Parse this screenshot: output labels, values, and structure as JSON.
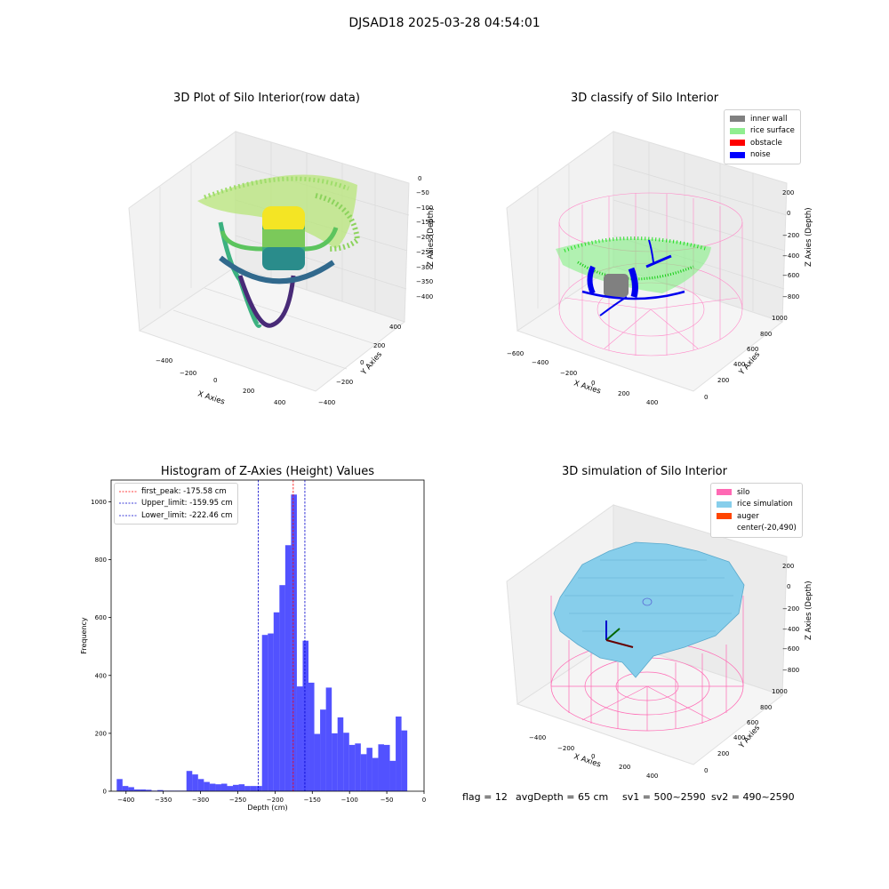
{
  "figure": {
    "suptitle": "DJSAD18 2025-03-28 04:54:01"
  },
  "plots": {
    "tl": {
      "title": "3D Plot of Silo Interior(row data)",
      "xlabel": "X Axies",
      "ylabel": "Y Axies",
      "zlabel": "Z Axies (Depth)",
      "xticks": [
        "−400",
        "−200",
        "0",
        "200",
        "400"
      ],
      "yticks": [
        "400",
        "200",
        "0",
        "−200",
        "−400"
      ],
      "zticks": [
        "0",
        "−50",
        "−100",
        "−150",
        "−200",
        "−250",
        "−300",
        "−350",
        "−400"
      ]
    },
    "tr": {
      "title": "3D classify of Silo Interior",
      "xlabel": "X Axies",
      "ylabel": "Y Axies",
      "zlabel": "Z Axies (Depth)",
      "xticks": [
        "−600",
        "−400",
        "−200",
        "0",
        "200",
        "400"
      ],
      "yticks": [
        "1000",
        "800",
        "600",
        "400",
        "200",
        "0"
      ],
      "zticks": [
        "200",
        "0",
        "−200",
        "−400",
        "−600",
        "−800"
      ],
      "legend": [
        {
          "label": "inner wall",
          "color": "#808080"
        },
        {
          "label": "rice surface",
          "color": "#90ee90"
        },
        {
          "label": "obstacle",
          "color": "#ff0000"
        },
        {
          "label": "noise",
          "color": "#0000ff"
        }
      ]
    },
    "br": {
      "title": "3D simulation of Silo Interior",
      "xlabel": "X Axies",
      "ylabel": "Y Axies",
      "zlabel": "Z Axies (Depth)",
      "xticks": [
        "−400",
        "−200",
        "0",
        "200",
        "400"
      ],
      "yticks": [
        "1000",
        "800",
        "600",
        "400",
        "200",
        "0"
      ],
      "zticks": [
        "200",
        "0",
        "−200",
        "−400",
        "−600",
        "−800"
      ],
      "legend": [
        {
          "label": "silo",
          "color": "#ff69b4"
        },
        {
          "label": "rice simulation",
          "color": "#87ceeb"
        },
        {
          "label": "auger",
          "color": "#ff4500"
        },
        {
          "label": "center(-20,490)",
          "color": ""
        }
      ]
    }
  },
  "footer": {
    "flag": "flag = 12",
    "avg": "avgDepth = 65 cm",
    "sv1": "sv1 = 500~2590",
    "sv2": "sv2 = 490~2590"
  },
  "chart_data": {
    "type": "bar",
    "title": "Histogram of Z-Axies (Height) Values",
    "xlabel": "Depth (cm)",
    "ylabel": "Frequency",
    "xlim": [
      -420,
      0
    ],
    "ylim": [
      0,
      1075
    ],
    "xticks": [
      -400,
      -350,
      -300,
      -250,
      -200,
      -150,
      -100,
      -50,
      0
    ],
    "yticks": [
      0,
      200,
      400,
      600,
      800,
      1000
    ],
    "bin_width": 7.8,
    "bin_edges_start": -412.5,
    "values": [
      42,
      18,
      14,
      6,
      6,
      5,
      2,
      4,
      2,
      2,
      2,
      2,
      70,
      58,
      42,
      32,
      26,
      24,
      26,
      18,
      22,
      24,
      18,
      18,
      18,
      540,
      545,
      618,
      712,
      850,
      1025,
      362,
      520,
      375,
      198,
      282,
      358,
      200,
      255,
      202,
      160,
      165,
      128,
      150,
      115,
      162,
      160,
      105,
      258,
      210
    ],
    "bar_color": "#0000ff",
    "bar_alpha": 0.68,
    "vlines": [
      {
        "label": "first_peak: -175.58 cm",
        "x": -175.58,
        "color": "#ff0000",
        "style": "dashed"
      },
      {
        "label": "Upper_limit: -159.95 cm",
        "x": -159.95,
        "color": "#0000cc",
        "style": "dashed"
      },
      {
        "label": "Lower_limit: -222.46 cm",
        "x": -222.46,
        "color": "#0000cc",
        "style": "dashed"
      }
    ],
    "legend_position": "upper left"
  }
}
